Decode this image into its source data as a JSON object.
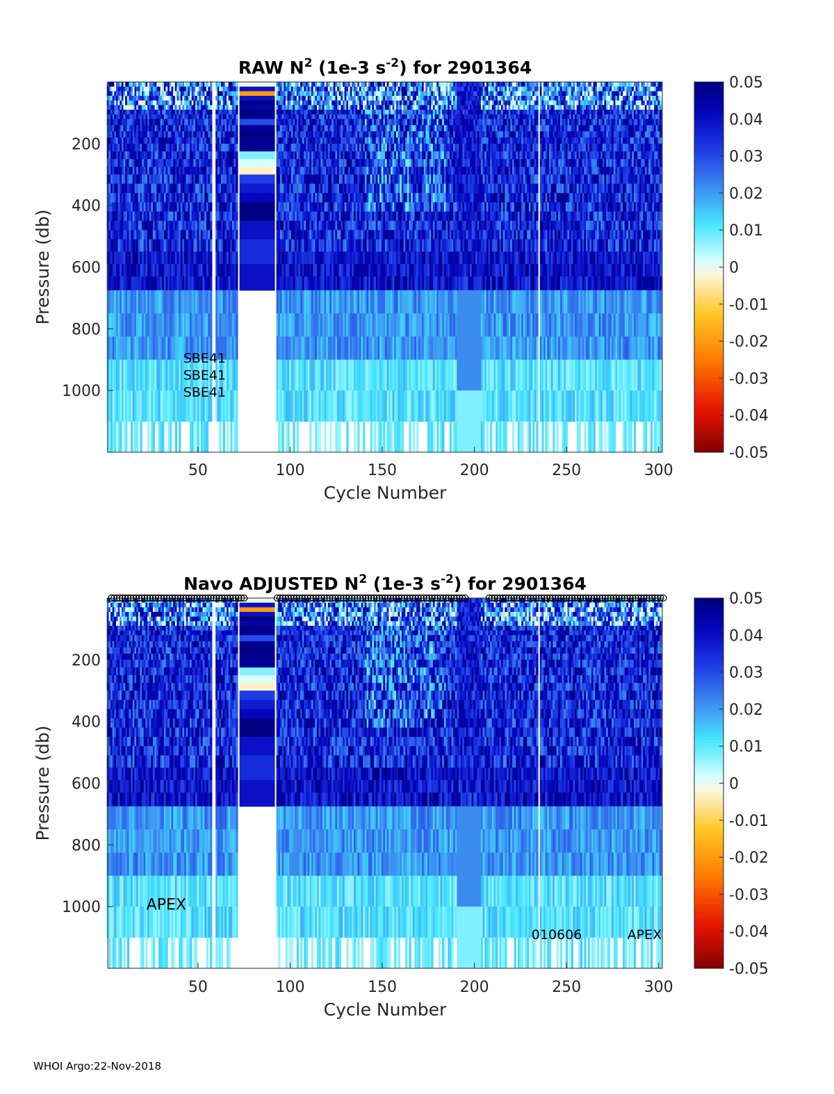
{
  "footer": "WHOI Argo:22-Nov-2018",
  "chart_data": [
    {
      "type": "heatmap",
      "title_parts": {
        "pre": "RAW N",
        "sup1": "2",
        "mid": " (1e-3 s",
        "sup2": "-2",
        "post": ") for 2901364"
      },
      "xlabel": "Cycle Number",
      "ylabel": "Pressure (db)",
      "xlim": [
        1,
        302
      ],
      "ylim": [
        0,
        1200
      ],
      "y_reversed": true,
      "xticks": [
        50,
        100,
        150,
        200,
        250,
        300
      ],
      "yticks": [
        200,
        400,
        600,
        800,
        1000
      ],
      "colorbar": {
        "range": [
          -0.05,
          0.05
        ],
        "ticks": [
          "0.05",
          "0.04",
          "0.03",
          "0.02",
          "0.01",
          "0",
          "-0.01",
          "-0.02",
          "-0.03",
          "-0.04",
          "-0.05"
        ]
      },
      "gaps": [
        [
          58,
          60
        ],
        [
          72,
          73
        ],
        [
          92,
          93
        ],
        [
          235,
          236
        ]
      ],
      "missing_deep": [
        [
          73,
          93
        ]
      ],
      "annotations": [
        {
          "text": "SBE41",
          "x": 42,
          "y": 910,
          "size": "small"
        },
        {
          "text": "SBE41",
          "x": 42,
          "y": 965,
          "size": "small"
        },
        {
          "text": "SBE41",
          "x": 42,
          "y": 1020,
          "size": "small"
        }
      ],
      "top_markers": false
    },
    {
      "type": "heatmap",
      "title_parts": {
        "pre": "Navo  ADJUSTED N",
        "sup1": "2",
        "mid": " (1e-3 s",
        "sup2": "-2",
        "post": ") for 2901364"
      },
      "xlabel": "Cycle Number",
      "ylabel": "Pressure (db)",
      "xlim": [
        1,
        302
      ],
      "ylim": [
        0,
        1200
      ],
      "y_reversed": true,
      "xticks": [
        50,
        100,
        150,
        200,
        250,
        300
      ],
      "yticks": [
        200,
        400,
        600,
        800,
        1000
      ],
      "colorbar": {
        "range": [
          -0.05,
          0.05
        ],
        "ticks": [
          "0.05",
          "0.04",
          "0.03",
          "0.02",
          "0.01",
          "0",
          "-0.01",
          "-0.02",
          "-0.03",
          "-0.04",
          "-0.05"
        ]
      },
      "gaps": [
        [
          58,
          60
        ],
        [
          72,
          73
        ],
        [
          92,
          93
        ],
        [
          235,
          236
        ]
      ],
      "missing_deep": [
        [
          73,
          93
        ]
      ],
      "annotations": [
        {
          "text": "APEX",
          "x": 22,
          "y": 1010,
          "size": "big"
        },
        {
          "text": "010606",
          "x": 231,
          "y": 1105,
          "size": "small"
        },
        {
          "text": "APEX",
          "x": 283,
          "y": 1105,
          "size": "small"
        }
      ],
      "top_markers": true,
      "marker_ranges": [
        [
          3,
          75
        ],
        [
          93,
          195
        ],
        [
          208,
          303
        ]
      ]
    }
  ]
}
